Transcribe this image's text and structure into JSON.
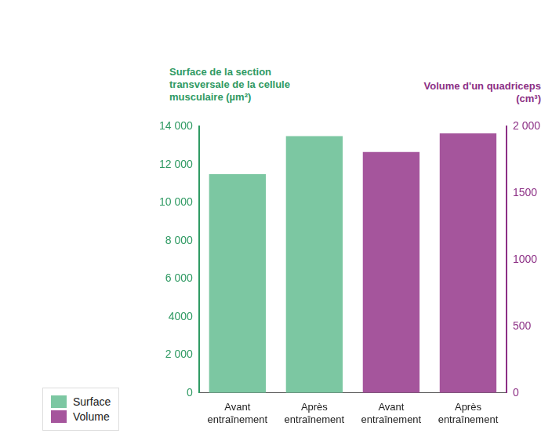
{
  "chart_data": {
    "type": "bar",
    "categories": [
      "Avant entraînement",
      "Après entraînement",
      "Avant entraînement",
      "Après entraînement"
    ],
    "series": [
      {
        "name": "Surface",
        "color": "#7cc7a2",
        "axis": "y",
        "values": [
          11500,
          13500,
          null,
          null
        ]
      },
      {
        "name": "Volume",
        "color": "#a5559c",
        "axis": "y2",
        "values": [
          null,
          null,
          1810,
          1950
        ]
      }
    ],
    "y_label": "Surface de la section transversale de la cellule musculaire (µm²)",
    "y2_label": "Volume d'un quadriceps (cm³)",
    "ylim": [
      0,
      14000
    ],
    "yticks": [
      0,
      {
        "value": 2000,
        "label": "2 000"
      },
      {
        "value": 4000,
        "label": "4000"
      },
      {
        "value": 6000,
        "label": "6 000"
      },
      {
        "value": 8000,
        "label": "8 000"
      },
      {
        "value": 10000,
        "label": "10 000"
      },
      {
        "value": 12000,
        "label": "12 000"
      },
      {
        "value": 14000,
        "label": "14 000"
      }
    ],
    "y2lim": [
      0,
      2000
    ],
    "y2ticks": [
      0,
      500,
      1000,
      1500,
      {
        "value": 2000,
        "label": "2 000"
      }
    ],
    "grid": false,
    "legend": "lower left"
  }
}
